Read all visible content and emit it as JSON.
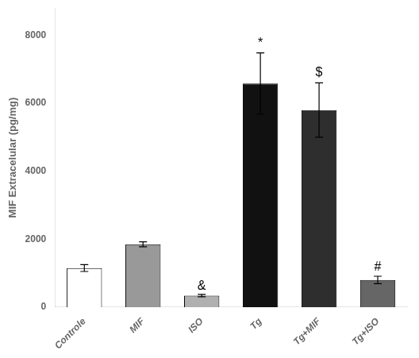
{
  "chart_data": {
    "type": "bar",
    "categories": [
      "Controle",
      "MIF",
      "ISO",
      "Tg",
      "Tg+MIF",
      "Tg+ISO"
    ],
    "values": [
      1150,
      1850,
      340,
      6580,
      5800,
      800
    ],
    "errors": [
      100,
      75,
      35,
      900,
      800,
      110
    ],
    "colors": [
      "#ffffff",
      "#999999",
      "#b0b0b0",
      "#111111",
      "#2e2e2e",
      "#666666"
    ],
    "ylabel": "MIF Extracelular (pg/mg)",
    "ylim": [
      0,
      8800
    ],
    "yticks": [
      0,
      2000,
      4000,
      6000,
      8000
    ],
    "grid": false,
    "annotations": [
      {
        "text": "&",
        "x": "ISO",
        "y": 420
      },
      {
        "text": "*",
        "x": "Tg",
        "y": 7580
      },
      {
        "text": "$",
        "x": "Tg+MIF",
        "y": 6720
      },
      {
        "text": "#",
        "x": "Tg+ISO",
        "y": 990
      }
    ]
  }
}
